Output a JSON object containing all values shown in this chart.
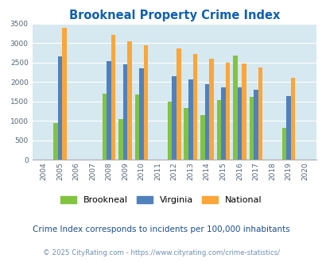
{
  "title": "Brookneal Property Crime Index",
  "subtitle": "Crime Index corresponds to incidents per 100,000 inhabitants",
  "footer": "© 2025 CityRating.com - https://www.cityrating.com/crime-statistics/",
  "years": [
    "2004",
    "2005",
    "2006",
    "2007",
    "2008",
    "2009",
    "2010",
    "2011",
    "2012",
    "2013",
    "2014",
    "2015",
    "2016",
    "2017",
    "2018",
    "2019",
    "2020"
  ],
  "brookneal": [
    0,
    950,
    0,
    0,
    1700,
    1050,
    1680,
    0,
    1500,
    1330,
    1150,
    1530,
    2680,
    1620,
    0,
    820,
    0
  ],
  "virginia": [
    0,
    2650,
    0,
    0,
    2540,
    2460,
    2350,
    0,
    2150,
    2070,
    1950,
    1870,
    1870,
    1800,
    0,
    1630,
    0
  ],
  "national": [
    0,
    3400,
    0,
    0,
    3200,
    3040,
    2950,
    0,
    2860,
    2720,
    2600,
    2500,
    2480,
    2380,
    0,
    2110,
    0
  ],
  "color_brookneal": "#82c341",
  "color_virginia": "#4f81bd",
  "color_national": "#faa63a",
  "color_background": "#d6e8f0",
  "color_title": "#1060b0",
  "color_subtitle": "#1a4d8f",
  "color_footer": "#7090b0",
  "ylim": [
    0,
    3500
  ],
  "yticks": [
    0,
    500,
    1000,
    1500,
    2000,
    2500,
    3000,
    3500
  ],
  "bar_width": 0.27,
  "legend_labels": [
    "Brookneal",
    "Virginia",
    "National"
  ]
}
